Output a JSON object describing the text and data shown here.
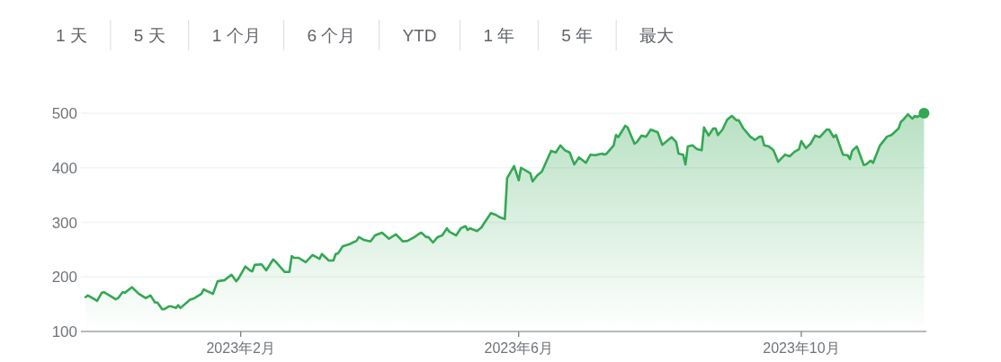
{
  "chart_data": {
    "type": "area",
    "xlim": [
      "2022-11-24",
      "2023-11-24"
    ],
    "ylim": [
      100,
      500
    ],
    "xticks": [
      {
        "value": "2023-02-01",
        "label": "2023年2月"
      },
      {
        "value": "2023-06-01",
        "label": "2023年6月"
      },
      {
        "value": "2023-10-01",
        "label": "2023年10月"
      }
    ],
    "yticks": [
      100,
      200,
      300,
      400,
      500
    ],
    "grid": "y",
    "annotations": [
      "1 天",
      "5 天",
      "1 个月",
      "6 个月",
      "YTD",
      "1 年",
      "5 年",
      "最大"
    ],
    "series": [
      {
        "color": "#34a853",
        "x": [
          "2022-11-26",
          "2022-11-27",
          "2022-12-01",
          "2022-12-03",
          "2022-12-04",
          "2022-12-06",
          "2022-12-09",
          "2022-12-10",
          "2022-12-12",
          "2022-12-13",
          "2022-12-16",
          "2022-12-19",
          "2022-12-22",
          "2022-12-24",
          "2022-12-26",
          "2022-12-27",
          "2022-12-29",
          "2022-12-30",
          "2023-01-01",
          "2023-01-02",
          "2023-01-04",
          "2023-01-05",
          "2023-01-06",
          "2023-01-10",
          "2023-01-12",
          "2023-01-15",
          "2023-01-16",
          "2023-01-20",
          "2023-01-22",
          "2023-01-25",
          "2023-01-28",
          "2023-01-30",
          "2023-01-31",
          "2023-02-03",
          "2023-02-05",
          "2023-02-06",
          "2023-02-07",
          "2023-02-10",
          "2023-02-12",
          "2023-02-15",
          "2023-02-16",
          "2023-02-20",
          "2023-02-22",
          "2023-02-23",
          "2023-02-24",
          "2023-02-26",
          "2023-03-01",
          "2023-03-04",
          "2023-03-07",
          "2023-03-08",
          "2023-03-11",
          "2023-03-13",
          "2023-03-14",
          "2023-03-15",
          "2023-03-17",
          "2023-03-20",
          "2023-03-23",
          "2023-03-24",
          "2023-03-26",
          "2023-03-29",
          "2023-03-31",
          "2023-04-03",
          "2023-04-06",
          "2023-04-09",
          "2023-04-12",
          "2023-04-14",
          "2023-04-17",
          "2023-04-19",
          "2023-04-20",
          "2023-04-22",
          "2023-04-23",
          "2023-04-25",
          "2023-04-27",
          "2023-04-29",
          "2023-05-01",
          "2023-05-02",
          "2023-05-05",
          "2023-05-07",
          "2023-05-09",
          "2023-05-10",
          "2023-05-11",
          "2023-05-14",
          "2023-05-16",
          "2023-05-17",
          "2023-05-20",
          "2023-05-22",
          "2023-05-24",
          "2023-05-26",
          "2023-05-27",
          "2023-05-30",
          "2023-06-01",
          "2023-06-02",
          "2023-06-06",
          "2023-06-07",
          "2023-06-09",
          "2023-06-11",
          "2023-06-15",
          "2023-06-17",
          "2023-06-19",
          "2023-06-21",
          "2023-06-23",
          "2023-06-25",
          "2023-06-27",
          "2023-06-30",
          "2023-07-02",
          "2023-07-04",
          "2023-07-07",
          "2023-07-08",
          "2023-07-09",
          "2023-07-12",
          "2023-07-13",
          "2023-07-14",
          "2023-07-17",
          "2023-07-18",
          "2023-07-21",
          "2023-07-22",
          "2023-07-24",
          "2023-07-26",
          "2023-07-28",
          "2023-07-31",
          "2023-08-02",
          "2023-08-04",
          "2023-08-06",
          "2023-08-08",
          "2023-08-09",
          "2023-08-11",
          "2023-08-12",
          "2023-08-13",
          "2023-08-15",
          "2023-08-17",
          "2023-08-19",
          "2023-08-20",
          "2023-08-22",
          "2023-08-24",
          "2023-08-25",
          "2023-08-26",
          "2023-08-28",
          "2023-08-30",
          "2023-09-01",
          "2023-09-03",
          "2023-09-04",
          "2023-09-06",
          "2023-09-09",
          "2023-09-11",
          "2023-09-13",
          "2023-09-14",
          "2023-09-15",
          "2023-09-17",
          "2023-09-19",
          "2023-09-21",
          "2023-09-24",
          "2023-09-26",
          "2023-09-28",
          "2023-09-30",
          "2023-10-01",
          "2023-10-03",
          "2023-10-05",
          "2023-10-07",
          "2023-10-09",
          "2023-10-12",
          "2023-10-13",
          "2023-10-15",
          "2023-10-16",
          "2023-10-19",
          "2023-10-21",
          "2023-10-22",
          "2023-10-23",
          "2023-10-25",
          "2023-10-28",
          "2023-10-29",
          "2023-10-31",
          "2023-11-01",
          "2023-11-04",
          "2023-11-07",
          "2023-11-09",
          "2023-11-12",
          "2023-11-13",
          "2023-11-14",
          "2023-11-16",
          "2023-11-18",
          "2023-11-19",
          "2023-11-20",
          "2023-11-23"
        ],
        "values": [
          163,
          166,
          156,
          171,
          172,
          167,
          159,
          161,
          172,
          171,
          181,
          169,
          161,
          166,
          153,
          153,
          141,
          141,
          146,
          146,
          143,
          148,
          143,
          158,
          161,
          169,
          177,
          169,
          192,
          194,
          204,
          192,
          197,
          219,
          212,
          210,
          222,
          223,
          212,
          232,
          228,
          209,
          209,
          238,
          235,
          235,
          227,
          240,
          233,
          242,
          230,
          230,
          242,
          243,
          256,
          260,
          266,
          273,
          268,
          265,
          276,
          281,
          270,
          278,
          265,
          266,
          273,
          279,
          281,
          273,
          273,
          263,
          273,
          276,
          289,
          283,
          276,
          289,
          293,
          286,
          289,
          284,
          291,
          298,
          317,
          314,
          309,
          306,
          381,
          403,
          377,
          400,
          390,
          375,
          386,
          393,
          431,
          428,
          441,
          432,
          428,
          406,
          419,
          409,
          424,
          423,
          426,
          424,
          426,
          441,
          460,
          456,
          477,
          474,
          444,
          447,
          459,
          457,
          470,
          465,
          442,
          449,
          456,
          447,
          426,
          424,
          406,
          439,
          441,
          434,
          432,
          474,
          459,
          472,
          472,
          460,
          470,
          488,
          495,
          487,
          487,
          472,
          457,
          451,
          457,
          457,
          441,
          439,
          432,
          411,
          424,
          421,
          429,
          434,
          449,
          436,
          444,
          459,
          456,
          470,
          470,
          456,
          460,
          424,
          423,
          416,
          431,
          439,
          405,
          406,
          413,
          409,
          441,
          457,
          460,
          472,
          484,
          488,
          498,
          490,
          495,
          493,
          500
        ]
      },
      {
        "type": "scatter",
        "color": "#34a853",
        "x": [
          "2023-11-23"
        ],
        "values": [
          500
        ]
      }
    ]
  }
}
